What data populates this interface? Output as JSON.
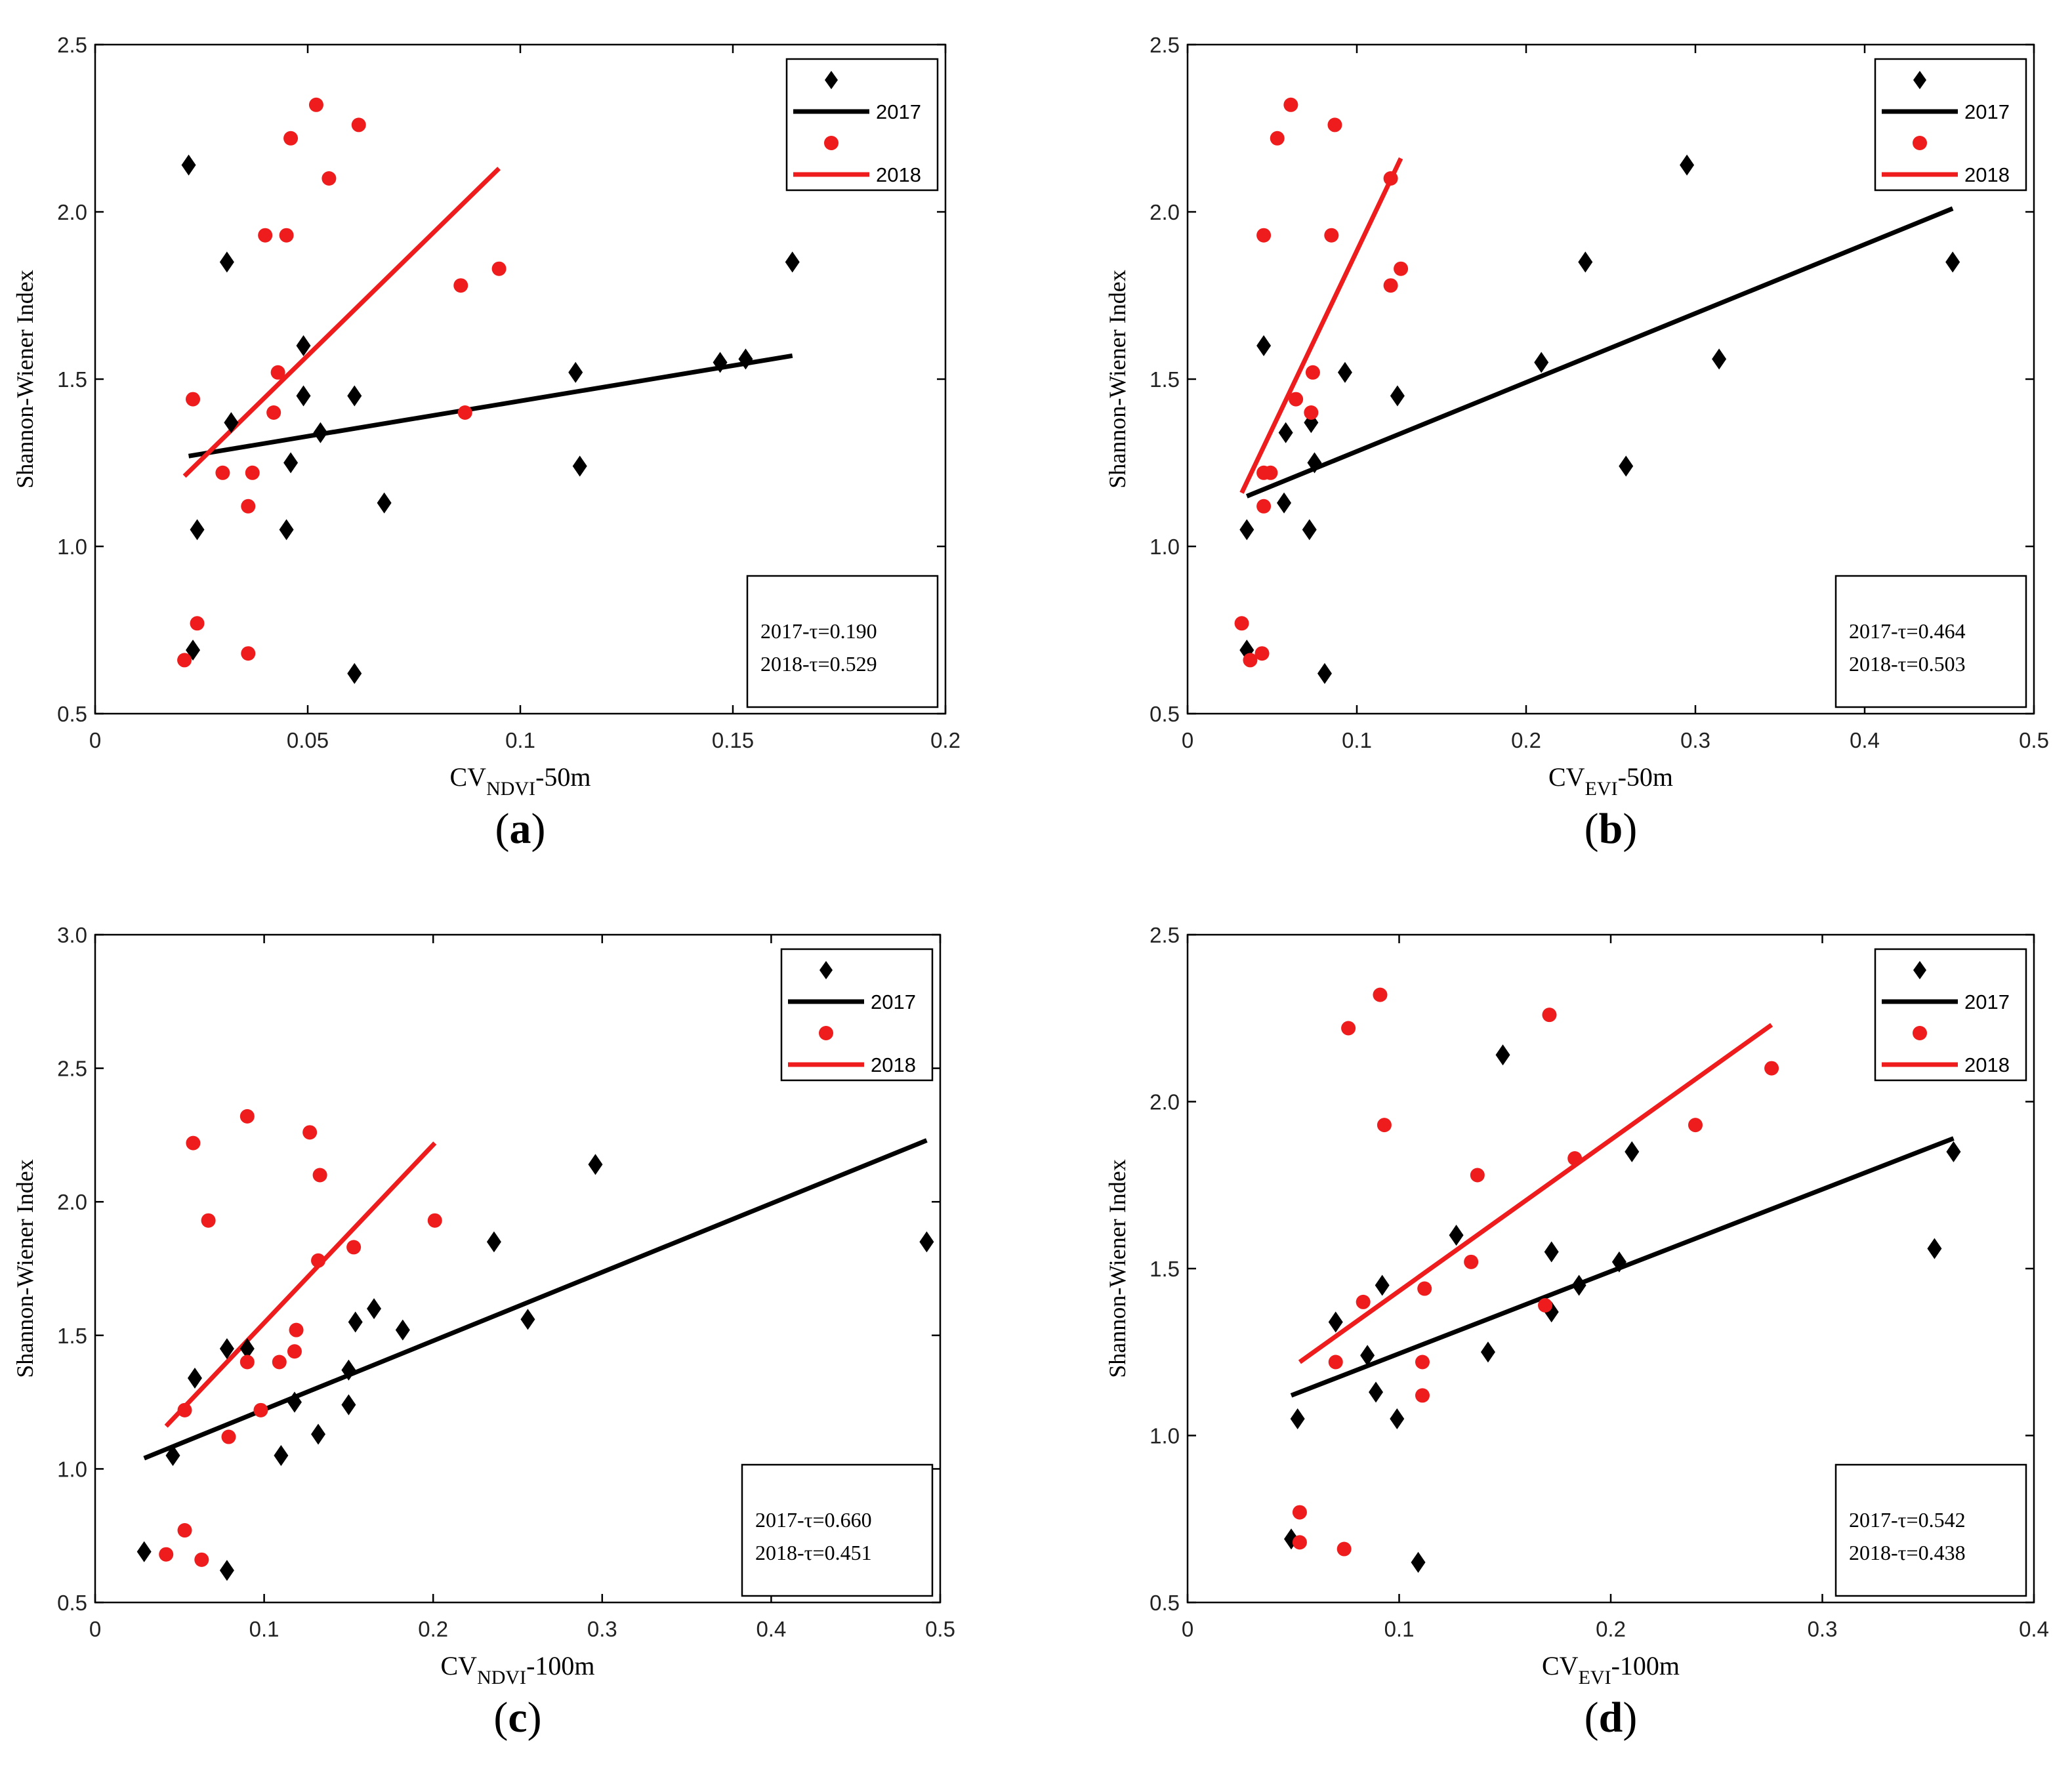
{
  "chart_data": [
    {
      "type": "scatter",
      "panel_label": "(a)",
      "panel_letter": "a",
      "xlabel_main": "CV",
      "xlabel_sub": "NDVI",
      "xlabel_suffix": "-50m",
      "ylabel": "Shannon-Wiener Index",
      "xlim": [
        0,
        0.2
      ],
      "ylim": [
        0.5,
        2.5
      ],
      "xticks": [
        0,
        0.05,
        0.1,
        0.15,
        0.2
      ],
      "xtick_labels": [
        "0",
        "0.05",
        "0.1",
        "0.15",
        "0.2"
      ],
      "yticks": [
        0.5,
        1.0,
        1.5,
        2.0,
        2.5
      ],
      "ytick_labels": [
        "0.5",
        "1.0",
        "1.5",
        "2.0",
        "2.5"
      ],
      "legend": [
        "2017",
        "2018"
      ],
      "stats": [
        "2017-τ=0.190",
        "2018-τ=0.529"
      ],
      "series": [
        {
          "name": "2017",
          "marker": "diamond",
          "color": "#000000",
          "points": [
            [
              0.022,
              2.14
            ],
            [
              0.031,
              1.85
            ],
            [
              0.164,
              1.85
            ],
            [
              0.049,
              1.6
            ],
            [
              0.113,
              1.52
            ],
            [
              0.147,
              1.55
            ],
            [
              0.153,
              1.56
            ],
            [
              0.049,
              1.45
            ],
            [
              0.061,
              1.45
            ],
            [
              0.032,
              1.37
            ],
            [
              0.053,
              1.34
            ],
            [
              0.046,
              1.25
            ],
            [
              0.114,
              1.24
            ],
            [
              0.068,
              1.13
            ],
            [
              0.024,
              1.05
            ],
            [
              0.045,
              1.05
            ],
            [
              0.023,
              0.69
            ],
            [
              0.061,
              0.62
            ]
          ],
          "fit": [
            [
              0.022,
              1.27
            ],
            [
              0.164,
              1.57
            ]
          ]
        },
        {
          "name": "2018",
          "marker": "circle",
          "color": "#ee1c1c",
          "points": [
            [
              0.052,
              2.32
            ],
            [
              0.062,
              2.26
            ],
            [
              0.046,
              2.22
            ],
            [
              0.055,
              2.1
            ],
            [
              0.04,
              1.93
            ],
            [
              0.045,
              1.93
            ],
            [
              0.095,
              1.83
            ],
            [
              0.086,
              1.78
            ],
            [
              0.043,
              1.52
            ],
            [
              0.023,
              1.44
            ],
            [
              0.042,
              1.4
            ],
            [
              0.087,
              1.4
            ],
            [
              0.03,
              1.22
            ],
            [
              0.037,
              1.22
            ],
            [
              0.036,
              1.12
            ],
            [
              0.024,
              0.77
            ],
            [
              0.036,
              0.68
            ],
            [
              0.021,
              0.66
            ]
          ],
          "fit": [
            [
              0.021,
              1.21
            ],
            [
              0.095,
              2.13
            ]
          ]
        }
      ]
    },
    {
      "type": "scatter",
      "panel_label": "(b)",
      "panel_letter": "b",
      "xlabel_main": "CV",
      "xlabel_sub": "EVI",
      "xlabel_suffix": "-50m",
      "ylabel": "Shannon-Wiener Index",
      "xlim": [
        0,
        0.5
      ],
      "ylim": [
        0.5,
        2.5
      ],
      "xticks": [
        0,
        0.1,
        0.2,
        0.3,
        0.4,
        0.5
      ],
      "xtick_labels": [
        "0",
        "0.1",
        "0.2",
        "0.3",
        "0.4",
        "0.5"
      ],
      "yticks": [
        0.5,
        1.0,
        1.5,
        2.0,
        2.5
      ],
      "ytick_labels": [
        "0.5",
        "1.0",
        "1.5",
        "2.0",
        "2.5"
      ],
      "legend": [
        "2017",
        "2018"
      ],
      "stats": [
        "2017-τ=0.464",
        "2018-τ=0.503"
      ],
      "series": [
        {
          "name": "2017",
          "marker": "diamond",
          "color": "#000000",
          "points": [
            [
              0.295,
              2.14
            ],
            [
              0.235,
              1.85
            ],
            [
              0.452,
              1.85
            ],
            [
              0.045,
              1.6
            ],
            [
              0.093,
              1.52
            ],
            [
              0.209,
              1.55
            ],
            [
              0.314,
              1.56
            ],
            [
              0.124,
              1.45
            ],
            [
              0.073,
              1.37
            ],
            [
              0.058,
              1.34
            ],
            [
              0.075,
              1.25
            ],
            [
              0.259,
              1.24
            ],
            [
              0.057,
              1.13
            ],
            [
              0.035,
              1.05
            ],
            [
              0.072,
              1.05
            ],
            [
              0.035,
              0.69
            ],
            [
              0.081,
              0.62
            ]
          ],
          "fit": [
            [
              0.035,
              1.15
            ],
            [
              0.452,
              2.01
            ]
          ]
        },
        {
          "name": "2018",
          "marker": "circle",
          "color": "#ee1c1c",
          "points": [
            [
              0.061,
              2.32
            ],
            [
              0.087,
              2.26
            ],
            [
              0.053,
              2.22
            ],
            [
              0.12,
              2.1
            ],
            [
              0.045,
              1.93
            ],
            [
              0.085,
              1.93
            ],
            [
              0.126,
              1.83
            ],
            [
              0.12,
              1.78
            ],
            [
              0.074,
              1.52
            ],
            [
              0.064,
              1.44
            ],
            [
              0.073,
              1.4
            ],
            [
              0.045,
              1.22
            ],
            [
              0.049,
              1.22
            ],
            [
              0.045,
              1.12
            ],
            [
              0.032,
              0.77
            ],
            [
              0.044,
              0.68
            ],
            [
              0.037,
              0.66
            ]
          ],
          "fit": [
            [
              0.032,
              1.16
            ],
            [
              0.126,
              2.16
            ]
          ]
        }
      ]
    },
    {
      "type": "scatter",
      "panel_label": "(c)",
      "panel_letter": "c",
      "xlabel_main": "CV",
      "xlabel_sub": "NDVI",
      "xlabel_suffix": "-100m",
      "ylabel": "Shannon-Wiener Index",
      "xlim": [
        0,
        0.5
      ],
      "ylim": [
        0.5,
        3.0
      ],
      "xticks": [
        0,
        0.1,
        0.2,
        0.3,
        0.4,
        0.5
      ],
      "xtick_labels": [
        "0",
        "0.1",
        "0.2",
        "0.3",
        "0.4",
        "0.5"
      ],
      "yticks": [
        0.5,
        1.0,
        1.5,
        2.0,
        2.5,
        3.0
      ],
      "ytick_labels": [
        "0.5",
        "1.0",
        "1.5",
        "2.0",
        "2.5",
        "3.0"
      ],
      "legend": [
        "2017",
        "2018"
      ],
      "stats": [
        "2017-τ=0.660",
        "2018-τ=0.451"
      ],
      "series": [
        {
          "name": "2017",
          "marker": "diamond",
          "color": "#000000",
          "points": [
            [
              0.296,
              2.14
            ],
            [
              0.236,
              1.85
            ],
            [
              0.492,
              1.85
            ],
            [
              0.165,
              1.6
            ],
            [
              0.182,
              1.52
            ],
            [
              0.154,
              1.55
            ],
            [
              0.256,
              1.56
            ],
            [
              0.078,
              1.45
            ],
            [
              0.09,
              1.45
            ],
            [
              0.15,
              1.37
            ],
            [
              0.059,
              1.34
            ],
            [
              0.118,
              1.25
            ],
            [
              0.15,
              1.24
            ],
            [
              0.132,
              1.13
            ],
            [
              0.046,
              1.05
            ],
            [
              0.11,
              1.05
            ],
            [
              0.029,
              0.69
            ],
            [
              0.078,
              0.62
            ]
          ],
          "fit": [
            [
              0.029,
              1.04
            ],
            [
              0.492,
              2.23
            ]
          ]
        },
        {
          "name": "2018",
          "marker": "circle",
          "color": "#ee1c1c",
          "points": [
            [
              0.09,
              2.32
            ],
            [
              0.127,
              2.26
            ],
            [
              0.058,
              2.22
            ],
            [
              0.133,
              2.1
            ],
            [
              0.067,
              1.93
            ],
            [
              0.201,
              1.93
            ],
            [
              0.153,
              1.83
            ],
            [
              0.132,
              1.78
            ],
            [
              0.119,
              1.52
            ],
            [
              0.118,
              1.44
            ],
            [
              0.09,
              1.4
            ],
            [
              0.109,
              1.4
            ],
            [
              0.053,
              1.22
            ],
            [
              0.098,
              1.22
            ],
            [
              0.079,
              1.12
            ],
            [
              0.053,
              0.77
            ],
            [
              0.042,
              0.68
            ],
            [
              0.063,
              0.66
            ]
          ],
          "fit": [
            [
              0.042,
              1.16
            ],
            [
              0.201,
              2.22
            ]
          ]
        }
      ]
    },
    {
      "type": "scatter",
      "panel_label": "(d)",
      "panel_letter": "d",
      "xlabel_main": "CV",
      "xlabel_sub": "EVI",
      "xlabel_suffix": "-100m",
      "ylabel": "Shannon-Wiener Index",
      "xlim": [
        0,
        0.4
      ],
      "ylim": [
        0.5,
        2.5
      ],
      "xticks": [
        0,
        0.1,
        0.2,
        0.3,
        0.4
      ],
      "xtick_labels": [
        "0",
        "0.1",
        "0.2",
        "0.3",
        "0.4"
      ],
      "yticks": [
        0.5,
        1.0,
        1.5,
        2.0,
        2.5
      ],
      "ytick_labels": [
        "0.5",
        "1.0",
        "1.5",
        "2.0",
        "2.5"
      ],
      "legend": [
        "2017",
        "2018"
      ],
      "stats": [
        "2017-τ=0.542",
        "2018-τ=0.438"
      ],
      "series": [
        {
          "name": "2017",
          "marker": "diamond",
          "color": "#000000",
          "points": [
            [
              0.149,
              2.14
            ],
            [
              0.21,
              1.85
            ],
            [
              0.362,
              1.85
            ],
            [
              0.127,
              1.6
            ],
            [
              0.204,
              1.52
            ],
            [
              0.172,
              1.55
            ],
            [
              0.353,
              1.56
            ],
            [
              0.092,
              1.45
            ],
            [
              0.185,
              1.45
            ],
            [
              0.172,
              1.37
            ],
            [
              0.07,
              1.34
            ],
            [
              0.142,
              1.25
            ],
            [
              0.085,
              1.24
            ],
            [
              0.089,
              1.13
            ],
            [
              0.052,
              1.05
            ],
            [
              0.099,
              1.05
            ],
            [
              0.049,
              0.69
            ],
            [
              0.109,
              0.62
            ]
          ],
          "fit": [
            [
              0.049,
              1.12
            ],
            [
              0.362,
              1.89
            ]
          ]
        },
        {
          "name": "2018",
          "marker": "circle",
          "color": "#ee1c1c",
          "points": [
            [
              0.091,
              2.32
            ],
            [
              0.171,
              2.26
            ],
            [
              0.076,
              2.22
            ],
            [
              0.276,
              2.1
            ],
            [
              0.093,
              1.93
            ],
            [
              0.24,
              1.93
            ],
            [
              0.183,
              1.83
            ],
            [
              0.137,
              1.78
            ],
            [
              0.134,
              1.52
            ],
            [
              0.112,
              1.44
            ],
            [
              0.083,
              1.4
            ],
            [
              0.169,
              1.39
            ],
            [
              0.07,
              1.22
            ],
            [
              0.111,
              1.22
            ],
            [
              0.111,
              1.12
            ],
            [
              0.053,
              0.77
            ],
            [
              0.053,
              0.68
            ],
            [
              0.074,
              0.66
            ]
          ],
          "fit": [
            [
              0.053,
              1.22
            ],
            [
              0.276,
              2.23
            ]
          ]
        }
      ]
    }
  ]
}
